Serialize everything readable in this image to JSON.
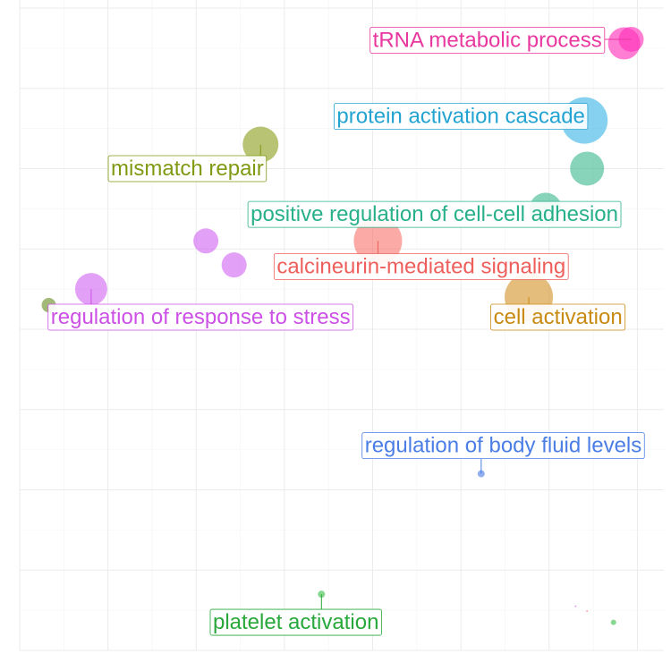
{
  "chart_data": {
    "type": "scatter",
    "title": "",
    "xlabel": "",
    "ylabel": "",
    "grid": true,
    "legend": "none",
    "xlim": [
      0,
      7.3
    ],
    "ylim": [
      0,
      8.1
    ],
    "points": [
      {
        "name": "tRNA metabolic process",
        "x": 6.93,
        "y": 7.61,
        "size": 14,
        "color": "#ff2fb9"
      },
      {
        "name": "",
        "x": 6.85,
        "y": 7.56,
        "size": 18,
        "color": "#ff2fb9"
      },
      {
        "name": "protein activation cascade",
        "x": 6.4,
        "y": 6.6,
        "size": 26,
        "color": "#3cb4e5"
      },
      {
        "name": "mismatch repair",
        "x": 2.73,
        "y": 6.3,
        "size": 20,
        "color": "#8ca01e"
      },
      {
        "name": "",
        "x": 6.43,
        "y": 6.0,
        "size": 19,
        "color": "#3dba8f"
      },
      {
        "name": "positive regulation of cell-cell adhesion",
        "x": 5.96,
        "y": 5.5,
        "size": 18,
        "color": "#3dba8f"
      },
      {
        "name": "calcineurin-mediated signaling",
        "x": 4.06,
        "y": 5.1,
        "size": 27,
        "color": "#f8766d"
      },
      {
        "name": "",
        "x": 2.11,
        "y": 5.1,
        "size": 14,
        "color": "#d265f2"
      },
      {
        "name": "",
        "x": 2.43,
        "y": 4.8,
        "size": 14,
        "color": "#d265f2"
      },
      {
        "name": "regulation of response to stress",
        "x": 0.81,
        "y": 4.5,
        "size": 18,
        "color": "#d265f2"
      },
      {
        "name": "",
        "x": 0.33,
        "y": 4.3,
        "size": 8,
        "color": "#6b8e23"
      },
      {
        "name": "cell activation",
        "x": 5.77,
        "y": 4.4,
        "size": 27,
        "color": "#d4952b"
      },
      {
        "name": "regulation of body fluid levels",
        "x": 5.23,
        "y": 2.2,
        "size": 4,
        "color": "#4f7fe5"
      },
      {
        "name": "platelet activation",
        "x": 3.42,
        "y": 0.7,
        "size": 4,
        "color": "#3cc04a"
      },
      {
        "name": "",
        "x": 6.73,
        "y": 0.35,
        "size": 3,
        "color": "#3cc04a"
      },
      {
        "name": "",
        "x": 6.3,
        "y": 0.55,
        "size": 1,
        "color": "#d265f2"
      },
      {
        "name": "",
        "x": 6.43,
        "y": 0.49,
        "size": 1,
        "color": "#f8766d"
      },
      {
        "name": "",
        "x": 2.9,
        "y": 0.48,
        "size": 1,
        "color": "#3cc04a"
      }
    ],
    "labels": [
      {
        "text": "tRNA metabolic process",
        "point": 0,
        "lx": 5.3,
        "ly": 7.6,
        "color": "#e8379f"
      },
      {
        "text": "protein activation cascade",
        "point": 2,
        "lx": 5.0,
        "ly": 6.65,
        "color": "#23a3d1"
      },
      {
        "text": "mismatch repair",
        "point": 3,
        "lx": 1.9,
        "ly": 6.0,
        "color": "#7f9a12"
      },
      {
        "text": "positive regulation of cell-cell adhesion",
        "point": 5,
        "lx": 4.7,
        "ly": 5.43,
        "color": "#27b08a"
      },
      {
        "text": "calcineurin-mediated signaling",
        "point": 6,
        "lx": 4.55,
        "ly": 4.78,
        "color": "#ee5f5b"
      },
      {
        "text": "regulation of response to stress",
        "point": 9,
        "lx": 2.05,
        "ly": 4.15,
        "color": "#cc50e6"
      },
      {
        "text": "cell activation",
        "point": 11,
        "lx": 6.1,
        "ly": 4.15,
        "color": "#c98a12"
      },
      {
        "text": "regulation of body fluid levels",
        "point": 12,
        "lx": 5.48,
        "ly": 2.55,
        "color": "#4a7de6"
      },
      {
        "text": "platelet activation",
        "point": 13,
        "lx": 3.13,
        "ly": 0.35,
        "color": "#28a83a"
      }
    ]
  }
}
